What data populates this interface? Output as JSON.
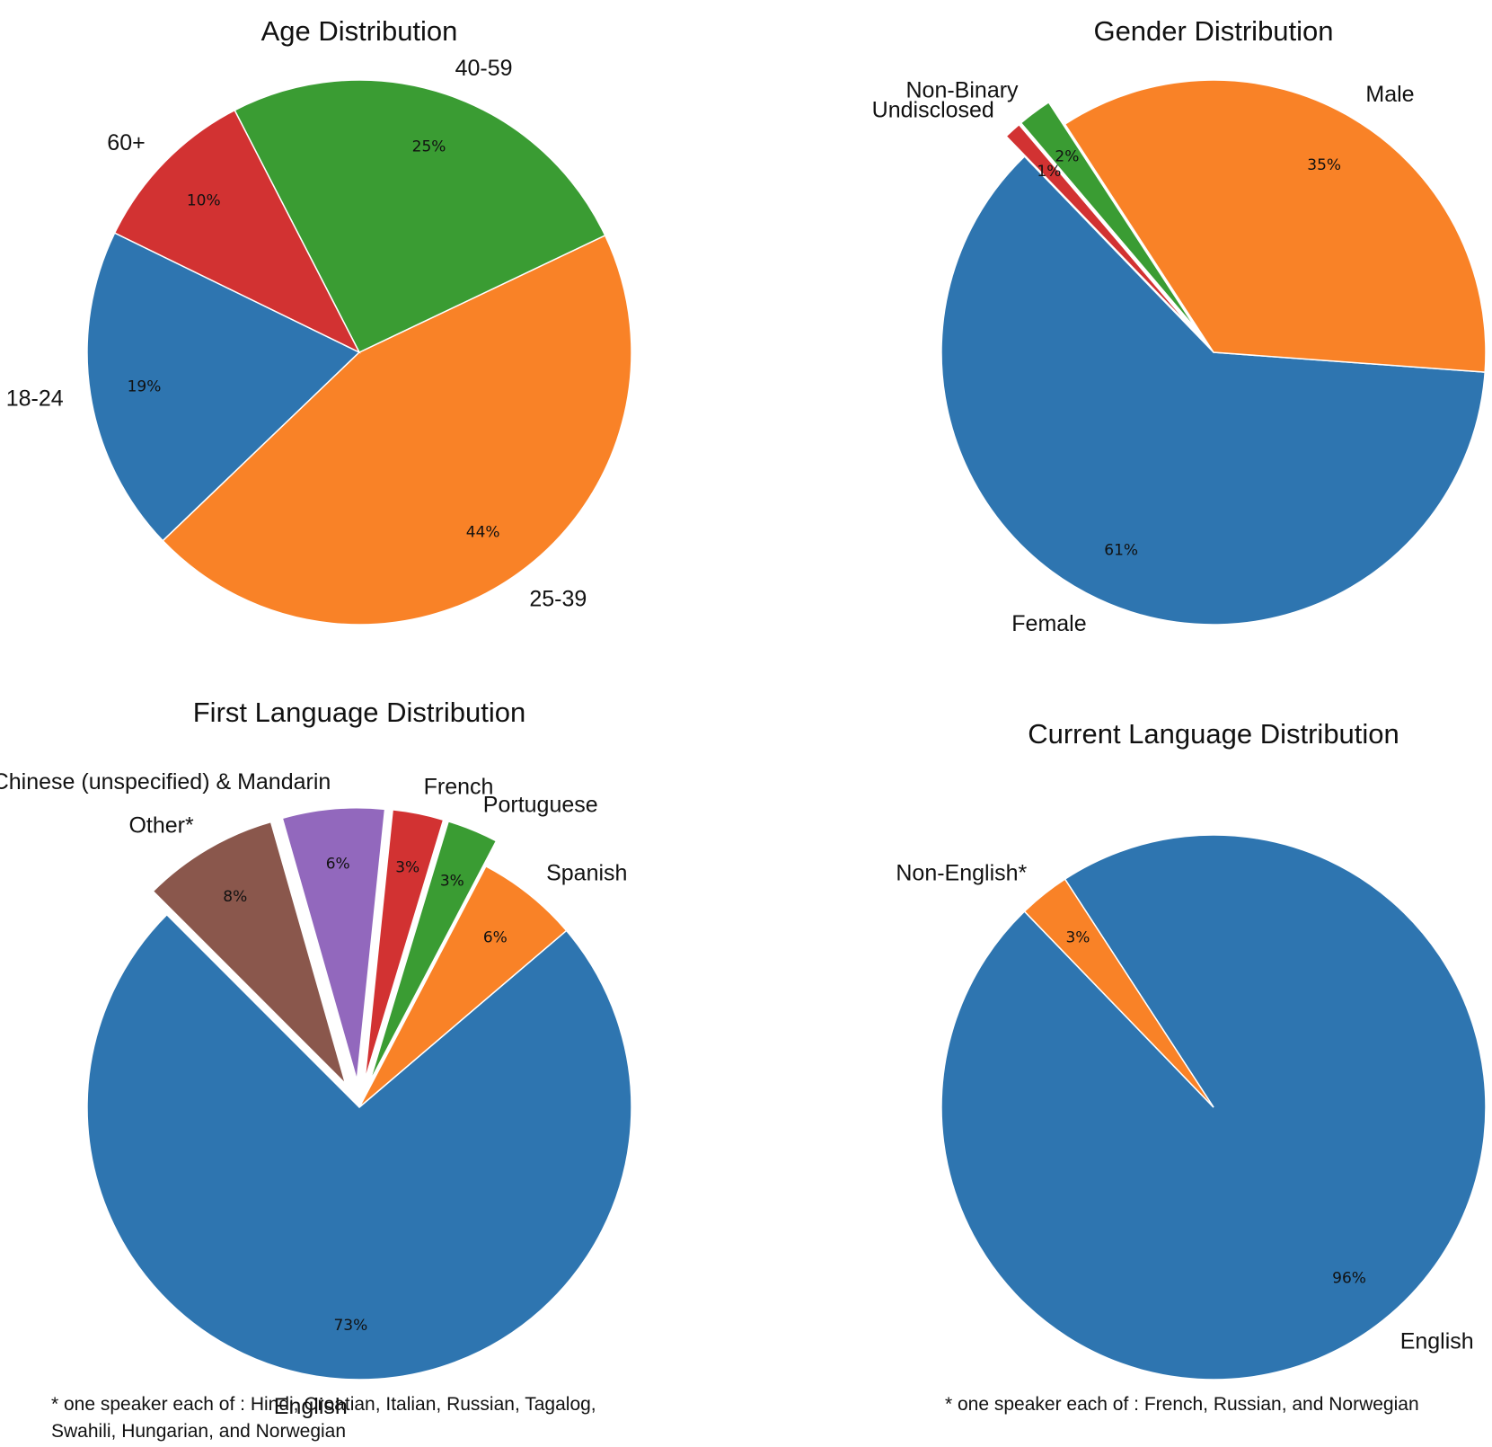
{
  "chart_data": [
    {
      "type": "pie",
      "title": "Age Distribution",
      "start_angle_deg": 154,
      "slices": [
        {
          "label": "18-24",
          "value": 19,
          "pct_label": "19%",
          "color": "#2e75b0",
          "explode": 0
        },
        {
          "label": "25-39",
          "value": 44,
          "pct_label": "44%",
          "color": "#f98227",
          "explode": 0
        },
        {
          "label": "40-59",
          "value": 25,
          "pct_label": "25%",
          "color": "#3a9c33",
          "explode": 0
        },
        {
          "label": "60+",
          "value": 10,
          "pct_label": "10%",
          "color": "#d23232",
          "explode": 0
        }
      ],
      "footnote": ""
    },
    {
      "type": "pie",
      "title": "Gender Distribution",
      "start_angle_deg": 134,
      "slices": [
        {
          "label": "Female",
          "value": 61,
          "pct_label": "61%",
          "color": "#2e75b0",
          "explode": 0
        },
        {
          "label": "Male",
          "value": 35,
          "pct_label": "35%",
          "color": "#f98227",
          "explode": 0
        },
        {
          "label": "Non-Binary",
          "value": 2,
          "pct_label": "2%",
          "color": "#3a9c33",
          "explode": 0.1
        },
        {
          "label": "Undisclosed",
          "value": 1,
          "pct_label": "1%",
          "color": "#d23232",
          "explode": 0.1
        }
      ],
      "footnote": ""
    },
    {
      "type": "pie",
      "title": "First Language Distribution",
      "start_angle_deg": 135,
      "slices": [
        {
          "label": "English",
          "value": 73,
          "pct_label": "73%",
          "color": "#2e75b0",
          "explode": 0
        },
        {
          "label": "Spanish",
          "value": 6,
          "pct_label": "6%",
          "color": "#f98227",
          "explode": 0
        },
        {
          "label": "Portuguese",
          "value": 3,
          "pct_label": "3%",
          "color": "#3a9c33",
          "explode": 0.1
        },
        {
          "label": "French",
          "value": 3,
          "pct_label": "3%",
          "color": "#d23232",
          "explode": 0.1
        },
        {
          "label": "Chinese (unspecified) & Mandarin",
          "value": 6,
          "pct_label": "6%",
          "color": "#9268bd",
          "explode": 0.1
        },
        {
          "label": "Other*",
          "value": 8,
          "pct_label": "8%",
          "color": "#8a574c",
          "explode": 0.1
        }
      ],
      "footnote": "* one speaker each of : Hindi, Croatian, Italian, Russian, Tagalog,\nSwahili, Hungarian, and Norwegian"
    },
    {
      "type": "pie",
      "title": "Current Language Distribution",
      "start_angle_deg": 134,
      "slices": [
        {
          "label": "English",
          "value": 96,
          "pct_label": "96%",
          "color": "#2e75b0",
          "explode": 0
        },
        {
          "label": "Non-English*",
          "value": 3,
          "pct_label": "3%",
          "color": "#f98227",
          "explode": 0
        }
      ],
      "footnote": "* one speaker each of : French, Russian, and Norwegian"
    }
  ]
}
